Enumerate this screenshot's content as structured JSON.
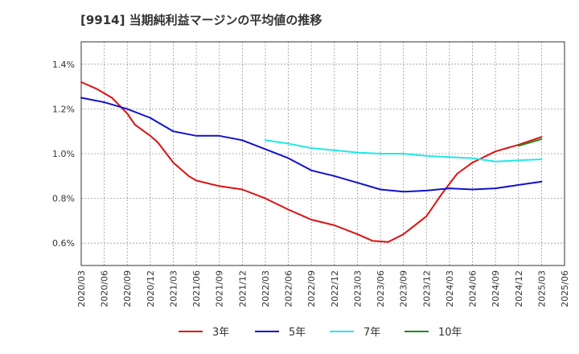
{
  "chart_data": {
    "type": "line",
    "title": "[9914]  当期純利益マージンの平均値の推移",
    "xlabel": "",
    "ylabel": "",
    "x_ticks": [
      "2020/03",
      "2020/06",
      "2020/09",
      "2020/12",
      "2021/03",
      "2021/06",
      "2021/09",
      "2021/12",
      "2022/03",
      "2022/06",
      "2022/09",
      "2022/12",
      "2023/03",
      "2023/06",
      "2023/09",
      "2023/12",
      "2024/03",
      "2024/06",
      "2024/09",
      "2024/12",
      "2025/03",
      "2025/06"
    ],
    "y_ticks": [
      "0.6%",
      "0.8%",
      "1.0%",
      "1.2%",
      "1.4%"
    ],
    "ylim": [
      0.5,
      1.5
    ],
    "grid": true,
    "legend_position": "bottom",
    "series": [
      {
        "name": "3年",
        "color": "#dd1111",
        "x": [
          "2020/03",
          "2020/05",
          "2020/07",
          "2020/09",
          "2020/10",
          "2020/12",
          "2021/01",
          "2021/03",
          "2021/05",
          "2021/06",
          "2021/09",
          "2021/12",
          "2022/03",
          "2022/06",
          "2022/09",
          "2022/12",
          "2023/03",
          "2023/05",
          "2023/07",
          "2023/09",
          "2023/12",
          "2024/02",
          "2024/04",
          "2024/06",
          "2024/09",
          "2024/12",
          "2025/03"
        ],
        "values": [
          1.32,
          1.29,
          1.25,
          1.18,
          1.13,
          1.08,
          1.05,
          0.96,
          0.9,
          0.88,
          0.855,
          0.84,
          0.8,
          0.75,
          0.705,
          0.68,
          0.64,
          0.61,
          0.605,
          0.64,
          0.72,
          0.82,
          0.91,
          0.96,
          1.01,
          1.04,
          1.075
        ]
      },
      {
        "name": "5年",
        "color": "#1111cc",
        "x": [
          "2020/03",
          "2020/06",
          "2020/09",
          "2020/12",
          "2021/01",
          "2021/03",
          "2021/06",
          "2021/09",
          "2021/12",
          "2022/03",
          "2022/06",
          "2022/09",
          "2022/12",
          "2023/03",
          "2023/06",
          "2023/09",
          "2023/12",
          "2024/03",
          "2024/06",
          "2024/09",
          "2024/12",
          "2025/03"
        ],
        "values": [
          1.25,
          1.23,
          1.2,
          1.16,
          1.14,
          1.1,
          1.08,
          1.08,
          1.06,
          1.02,
          0.98,
          0.925,
          0.9,
          0.87,
          0.84,
          0.83,
          0.835,
          0.845,
          0.84,
          0.845,
          0.86,
          0.875
        ]
      },
      {
        "name": "7年",
        "color": "#22e8e8",
        "x": [
          "2022/03",
          "2022/06",
          "2022/09",
          "2022/12",
          "2023/03",
          "2023/06",
          "2023/09",
          "2023/12",
          "2024/03",
          "2024/06",
          "2024/09",
          "2024/12",
          "2025/03"
        ],
        "values": [
          1.06,
          1.045,
          1.025,
          1.015,
          1.005,
          1.0,
          1.0,
          0.99,
          0.985,
          0.98,
          0.965,
          0.97,
          0.975
        ]
      },
      {
        "name": "10年",
        "color": "#228822",
        "x": [
          "2024/12",
          "2025/03"
        ],
        "values": [
          1.035,
          1.065
        ]
      }
    ]
  }
}
